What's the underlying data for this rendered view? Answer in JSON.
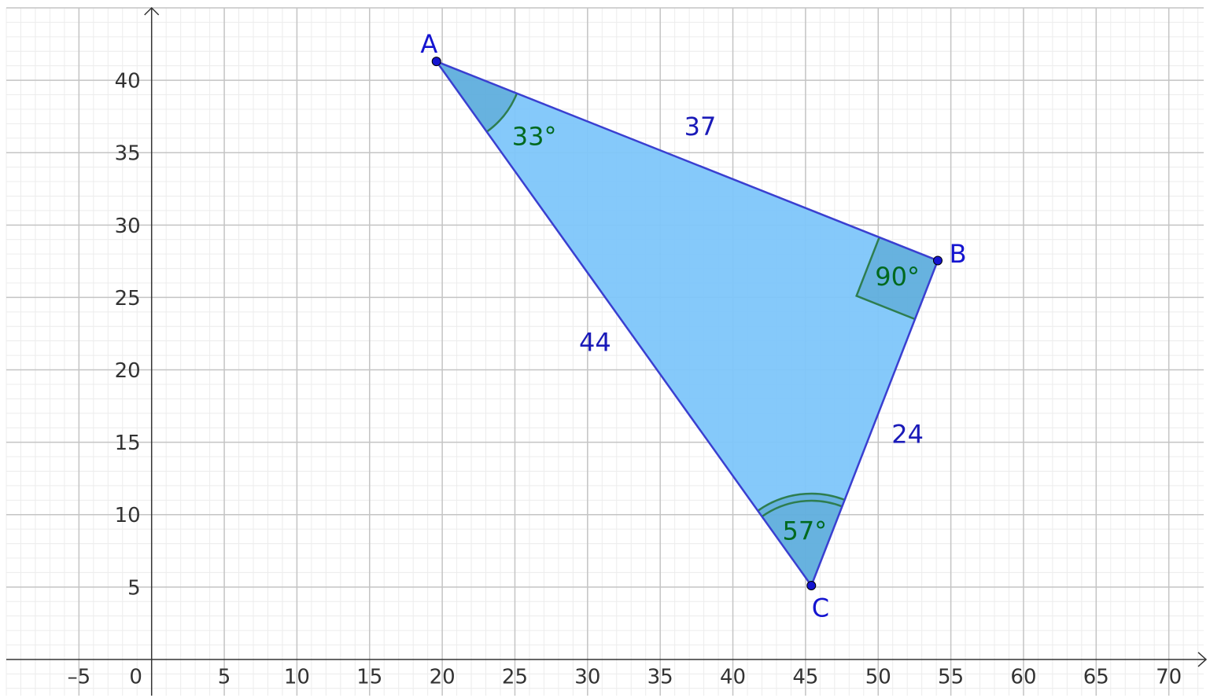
{
  "chart_data": {
    "type": "geometry",
    "xlim": [
      -10,
      72.4
    ],
    "ylim": [
      -2.5,
      45
    ],
    "xticks": [
      {
        "value": -5,
        "label": "–5"
      },
      0,
      5,
      10,
      15,
      20,
      25,
      30,
      35,
      40,
      45,
      50,
      55,
      60,
      65,
      70
    ],
    "yticks": [
      5,
      10,
      15,
      20,
      25,
      30,
      35,
      40
    ],
    "grid": true,
    "fill_color": "#7ec6fa",
    "stroke_color": "#3a3fd0",
    "angle_color": "#2e7d4f",
    "points": [
      {
        "name": "A",
        "x": 19.6,
        "y": 41.3
      },
      {
        "name": "B",
        "x": 54.1,
        "y": 27.55
      },
      {
        "name": "C",
        "x": 45.4,
        "y": 5.1
      }
    ],
    "sides": [
      37,
      24,
      44
    ],
    "angles": [
      {
        "value": 33,
        "label": "33°"
      },
      {
        "value": 90,
        "label": "90°"
      },
      {
        "value": 57,
        "label": "57°"
      }
    ]
  }
}
